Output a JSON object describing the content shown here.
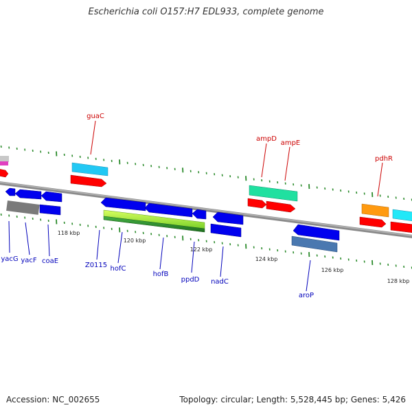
{
  "title": "Escherichia coli O157:H7 EDL933, complete genome",
  "footer": {
    "accession": "Accession: NC_002655",
    "topology": "Topology: circular; Length: 5,528,445 bp; Genes: 5,426"
  },
  "colors": {
    "forward_label": "#cc0000",
    "reverse_label": "#0000bb",
    "backbone": "#888888",
    "ticks": "#2a8a2a"
  },
  "ticks": [
    "118 kbp",
    "120 kbp",
    "122 kbp",
    "124 kbp",
    "126 kbp",
    "128 kbp"
  ],
  "forward_labels": [
    "guaC",
    "ampD",
    "ampE",
    "pdhR"
  ],
  "reverse_labels": [
    "yacG",
    "yacF",
    "coaE",
    "Z0115",
    "hofC",
    "hofB",
    "ppdD",
    "nadC",
    "aroP"
  ]
}
